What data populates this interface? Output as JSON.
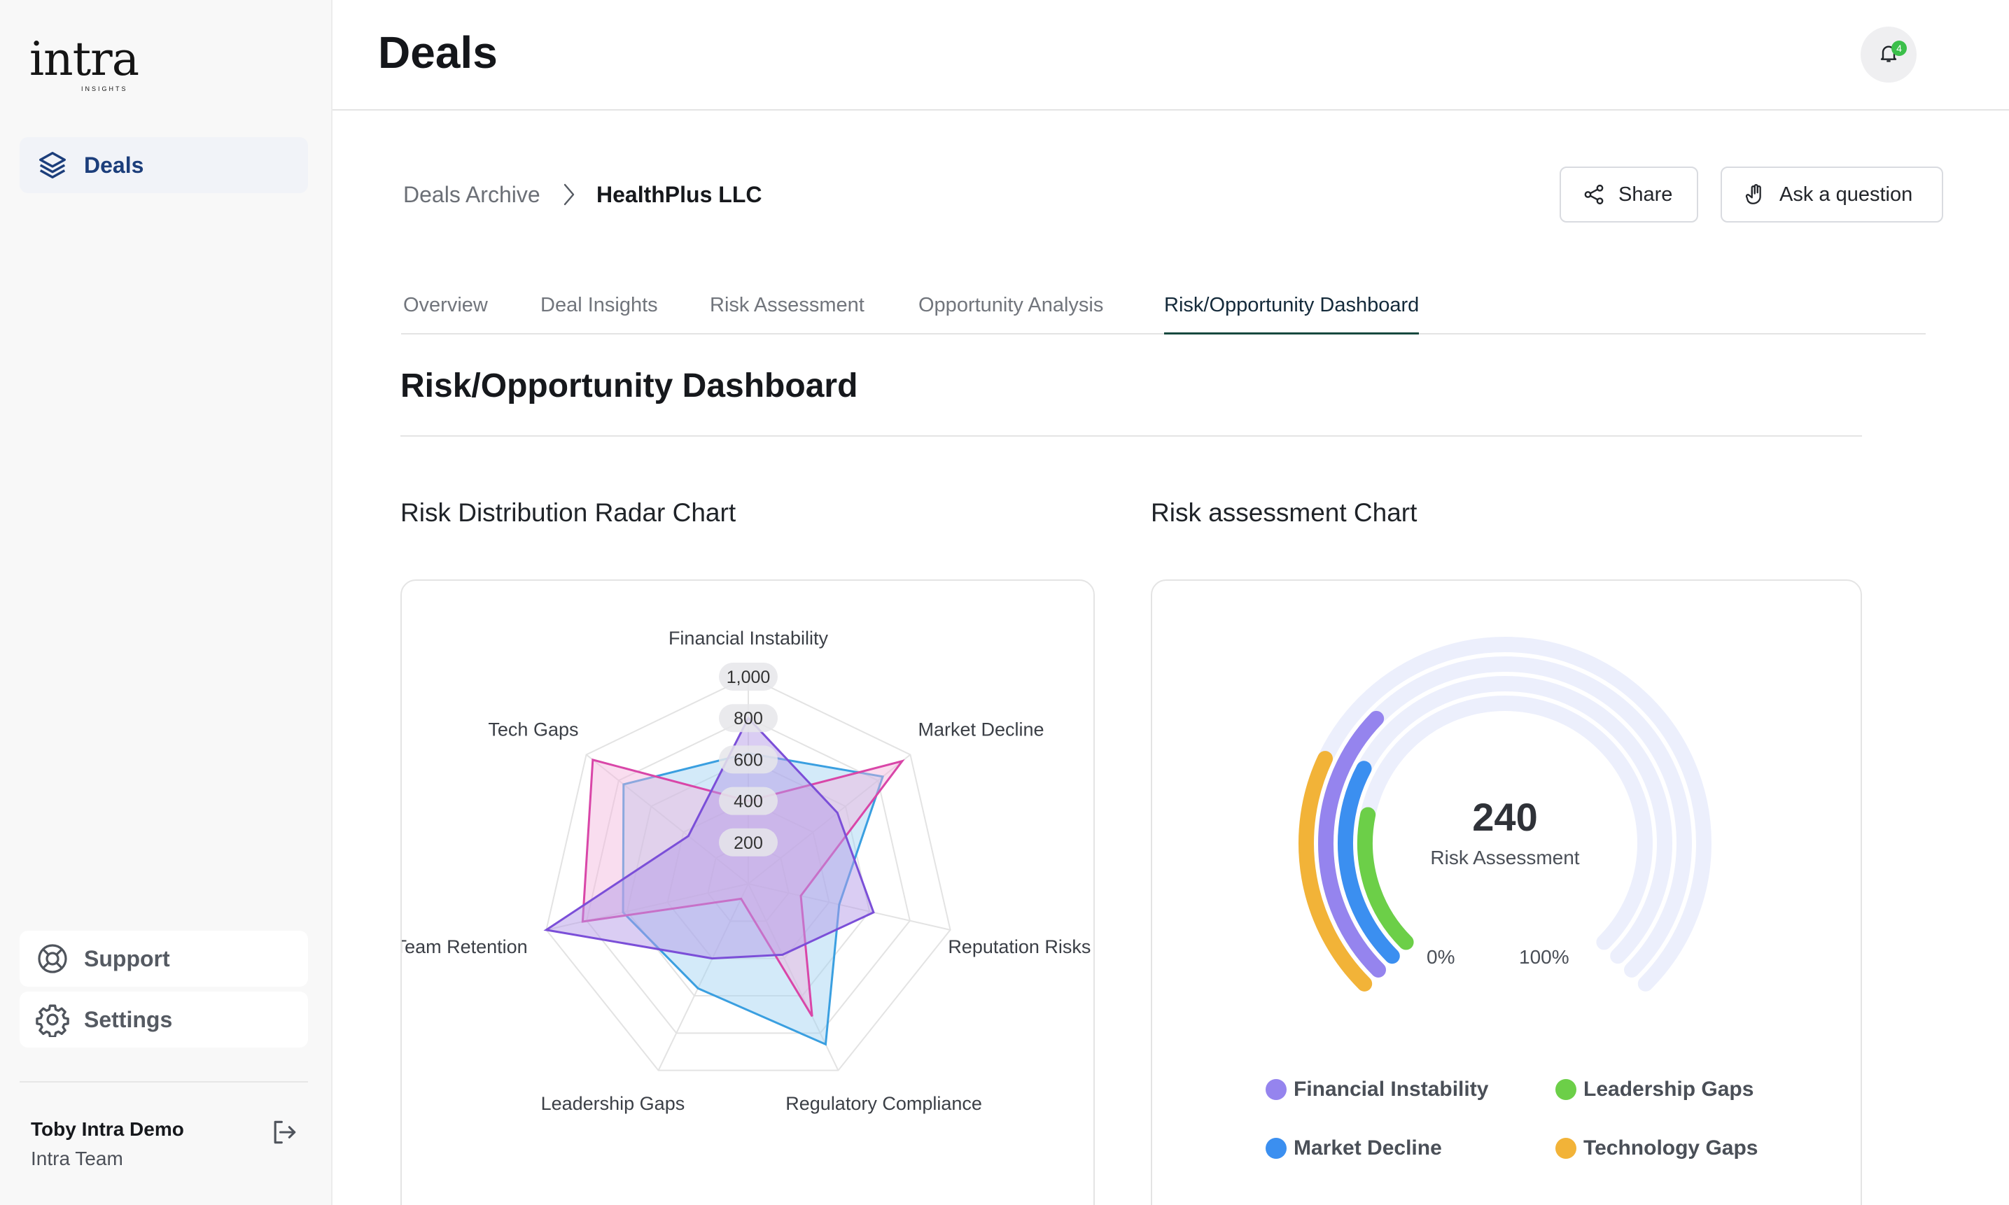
{
  "brand": {
    "name": "intra",
    "tagline": "INSIGHTS"
  },
  "sidebar": {
    "items": [
      {
        "label": "Deals",
        "icon": "layers-icon",
        "active": true
      }
    ],
    "bottom_items": [
      {
        "label": "Support",
        "icon": "lifebuoy-icon"
      },
      {
        "label": "Settings",
        "icon": "gear-icon"
      }
    ],
    "user": {
      "name": "Toby Intra Demo",
      "team": "Intra Team",
      "logout_icon": "logout-icon"
    }
  },
  "header": {
    "title": "Deals",
    "notifications": {
      "count": "4",
      "icon": "bell-icon"
    }
  },
  "breadcrumb": {
    "parent": "Deals Archive",
    "current": "HealthPlus LLC"
  },
  "actions": {
    "share_label": "Share",
    "ask_label": "Ask a question"
  },
  "tabs": [
    {
      "label": "Overview"
    },
    {
      "label": "Deal Insights"
    },
    {
      "label": "Risk Assessment"
    },
    {
      "label": "Opportunity Analysis"
    },
    {
      "label": "Risk/Opportunity Dashboard",
      "active": true
    }
  ],
  "section": {
    "title": "Risk/Opportunity Dashboard"
  },
  "cards": {
    "radar_title": "Risk Distribution Radar Chart",
    "gauge_title": "Risk assessment Chart"
  },
  "chart_data": [
    {
      "type": "radar",
      "categories": [
        "Financial Instability",
        "Market Decline",
        "Reputation Risks",
        "Regulatory Compliance",
        "Leadership Gaps",
        "Team Retention",
        "Tech Gaps"
      ],
      "ticks": [
        "200",
        "400",
        "600",
        "800",
        "1,000"
      ],
      "rmax": 1000,
      "series": [
        {
          "color": "#3a9fe0",
          "values": [
            630,
            830,
            450,
            860,
            560,
            620,
            770
          ]
        },
        {
          "color": "#d946a8",
          "values": [
            400,
            950,
            260,
            710,
            80,
            820,
            960
          ]
        },
        {
          "color": "#7b4fd8",
          "values": [
            800,
            550,
            620,
            380,
            400,
            1000,
            370
          ]
        }
      ],
      "colors": {
        "fill_blue": "#9dd1f2",
        "fill_pink": "#f2b3dc",
        "fill_purple": "#b69ce8"
      }
    },
    {
      "type": "radial-bar",
      "center_value": "240",
      "center_label": "Risk Assessment",
      "scale_labels": [
        "0%",
        "100%"
      ],
      "series": [
        {
          "name": "Financial Instability",
          "color": "#9584ee",
          "value": 0.33
        },
        {
          "name": "Market Decline",
          "color": "#3b8ff0",
          "value": 0.27
        },
        {
          "name": "Leadership Gaps",
          "color": "#6ccf48",
          "value": 0.21
        },
        {
          "name": "Technology Gaps",
          "color": "#f2b338",
          "value": 0.26
        }
      ],
      "track_color": "#eceffc"
    }
  ]
}
